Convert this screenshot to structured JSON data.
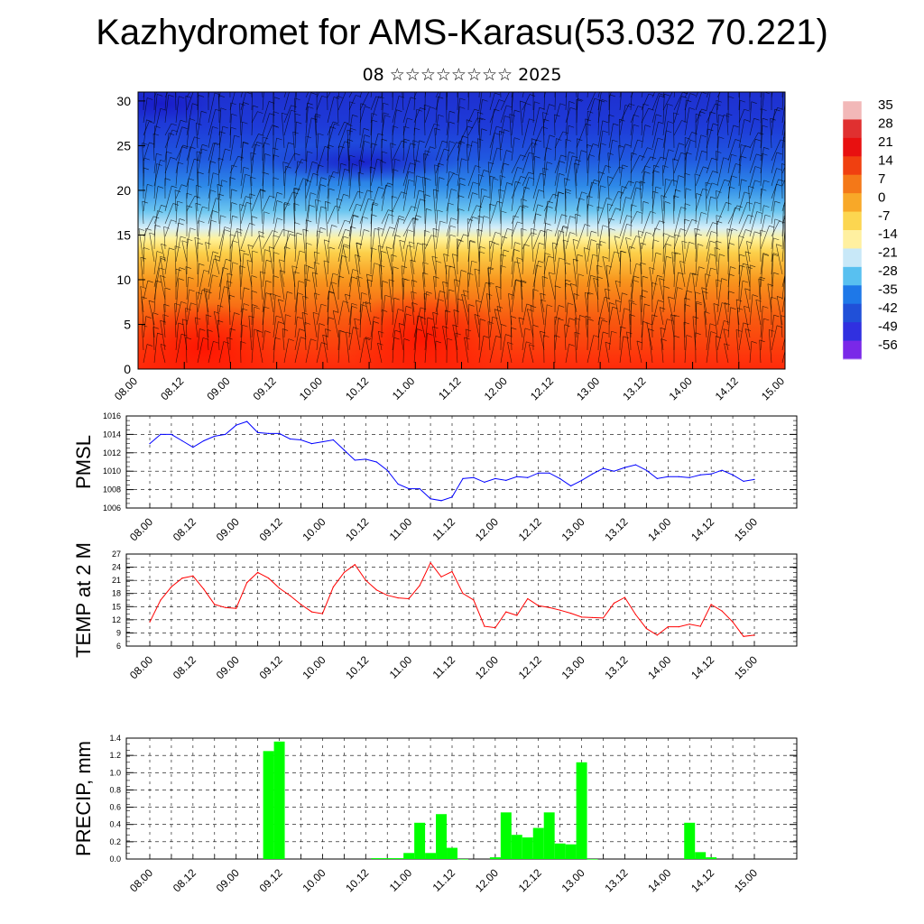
{
  "header": {
    "title": "Kazhydromet for AMS-Karasu(53.032 70.221)",
    "subtitle": "08 ☆☆☆☆☆☆☆☆ 2025"
  },
  "chart_data": [
    {
      "type": "heatmap",
      "name": "cross-section",
      "y_ticks": [
        "0",
        "5",
        "10",
        "15",
        "20",
        "25",
        "30"
      ],
      "ylim": [
        0,
        31
      ],
      "x_ticks": [
        "08.00",
        "08.12",
        "09.00",
        "09.12",
        "10.00",
        "10.12",
        "11.00",
        "11.12",
        "12.00",
        "12.12",
        "13.00",
        "13.12",
        "14.00",
        "14.12",
        "15.00"
      ],
      "colorbar": {
        "labels": [
          "35",
          "28",
          "21",
          "14",
          "7",
          "0",
          "-7",
          "-14",
          "-21",
          "-28",
          "-35",
          "-42",
          "-49",
          "-56"
        ],
        "colors": [
          "#f2b8b8",
          "#e03030",
          "#e81010",
          "#f04010",
          "#f47818",
          "#f8a828",
          "#fcd650",
          "#fff0a0",
          "#c8e8f8",
          "#58c0f0",
          "#1e78e8",
          "#2050d8",
          "#3030e0",
          "#7a28e8"
        ]
      },
      "has_wind_barbs": true
    },
    {
      "type": "line",
      "name": "PMSL",
      "ylabel": "PMSL",
      "ylim": [
        1006,
        1016
      ],
      "y_ticks": [
        "1006",
        "1008",
        "1010",
        "1012",
        "1014",
        "1016"
      ],
      "x_ticks": [
        "08.00",
        "08.12",
        "09.00",
        "09.12",
        "10.00",
        "10.12",
        "11.00",
        "11.12",
        "12.00",
        "12.12",
        "13.00",
        "13.12",
        "14.00",
        "14.12",
        "15.00"
      ],
      "color": "#0000ff",
      "x": [
        0,
        3,
        6,
        9,
        12,
        15,
        18,
        21,
        24,
        27,
        30,
        33,
        36,
        39,
        42,
        45,
        48,
        51,
        54,
        57,
        60,
        63,
        66,
        69,
        72,
        75,
        78,
        81,
        84,
        87,
        90,
        93,
        96,
        99,
        102,
        105,
        108,
        111,
        114,
        117,
        120,
        123,
        126,
        129,
        132,
        135,
        138,
        141,
        144,
        147,
        150,
        153,
        156,
        159,
        162,
        165,
        168
      ],
      "values": [
        1013.0,
        1014.0,
        1014.0,
        1013.3,
        1012.6,
        1013.3,
        1013.8,
        1014.0,
        1015.0,
        1015.4,
        1014.2,
        1014.1,
        1014.1,
        1013.5,
        1013.4,
        1013.0,
        1013.2,
        1013.4,
        1012.3,
        1011.2,
        1011.3,
        1011.0,
        1010.1,
        1008.6,
        1008.1,
        1008.1,
        1007.0,
        1006.8,
        1007.2,
        1009.2,
        1009.3,
        1008.8,
        1009.2,
        1009.0,
        1009.4,
        1009.3,
        1009.8,
        1009.8,
        1009.2,
        1008.4,
        1009.0,
        1009.7,
        1010.3,
        1010.0,
        1010.4,
        1010.7,
        1010.1,
        1009.2,
        1009.4,
        1009.4,
        1009.3,
        1009.6,
        1009.7,
        1010.1,
        1009.6,
        1008.9,
        1009.1
      ]
    },
    {
      "type": "line",
      "name": "TEMP at 2 M",
      "ylabel": "TEMP at 2 M",
      "ylim": [
        6,
        27
      ],
      "y_ticks": [
        "6",
        "9",
        "12",
        "15",
        "18",
        "21",
        "24",
        "27"
      ],
      "x_ticks": [
        "08.00",
        "08.12",
        "09.00",
        "09.12",
        "10.00",
        "10.12",
        "11.00",
        "11.12",
        "12.00",
        "12.12",
        "13.00",
        "13.12",
        "14.00",
        "14.12",
        "15.00"
      ],
      "color": "#ff0000",
      "x": [
        0,
        3,
        6,
        9,
        12,
        15,
        18,
        21,
        24,
        27,
        30,
        33,
        36,
        39,
        42,
        45,
        48,
        51,
        54,
        57,
        60,
        63,
        66,
        69,
        72,
        75,
        78,
        81,
        84,
        87,
        90,
        93,
        96,
        99,
        102,
        105,
        108,
        111,
        114,
        117,
        120,
        123,
        126,
        129,
        132,
        135,
        138,
        141,
        144,
        147,
        150,
        153,
        156,
        159,
        162,
        165,
        168
      ],
      "values": [
        11.5,
        16.5,
        19.5,
        21.5,
        22.0,
        19.0,
        15.5,
        14.8,
        14.6,
        20.5,
        22.8,
        21.5,
        19.2,
        17.5,
        15.5,
        13.8,
        13.4,
        19.5,
        22.8,
        24.6,
        21.0,
        18.8,
        17.6,
        17.0,
        16.8,
        19.8,
        25.0,
        21.8,
        23.0,
        18.0,
        16.5,
        10.5,
        10.2,
        13.8,
        13.0,
        16.8,
        15.2,
        14.8,
        14.2,
        13.5,
        12.6,
        12.5,
        12.4,
        15.8,
        17.1,
        13.2,
        10.0,
        8.5,
        10.4,
        10.4,
        11.0,
        10.5,
        15.5,
        14.0,
        11.5,
        8.2,
        8.5
      ]
    },
    {
      "type": "bar",
      "name": "PRECIP, mm",
      "ylabel": "PRECIP, mm",
      "ylim": [
        0,
        1.4
      ],
      "y_ticks": [
        "0.0",
        "0.2",
        "0.4",
        "0.6",
        "0.8",
        "1.0",
        "1.2",
        "1.4"
      ],
      "x_ticks": [
        "08.00",
        "08.12",
        "09.00",
        "09.12",
        "10.00",
        "10.12",
        "11.00",
        "11.12",
        "12.00",
        "12.12",
        "13.00",
        "13.12",
        "14.00",
        "14.12",
        "15.00"
      ],
      "color": "#00ff00",
      "bar_width_hours": 3,
      "x": [
        33,
        36,
        63,
        66,
        69,
        72,
        75,
        78,
        81,
        84,
        87,
        96,
        99,
        102,
        105,
        108,
        111,
        114,
        117,
        120,
        123,
        150,
        153,
        156
      ],
      "values": [
        1.25,
        1.36,
        0.01,
        0.01,
        0.01,
        0.07,
        0.42,
        0.07,
        0.52,
        0.13,
        0.0,
        0.02,
        0.54,
        0.28,
        0.25,
        0.36,
        0.54,
        0.18,
        0.17,
        1.12,
        0.0,
        0.42,
        0.08,
        0.02
      ]
    }
  ]
}
